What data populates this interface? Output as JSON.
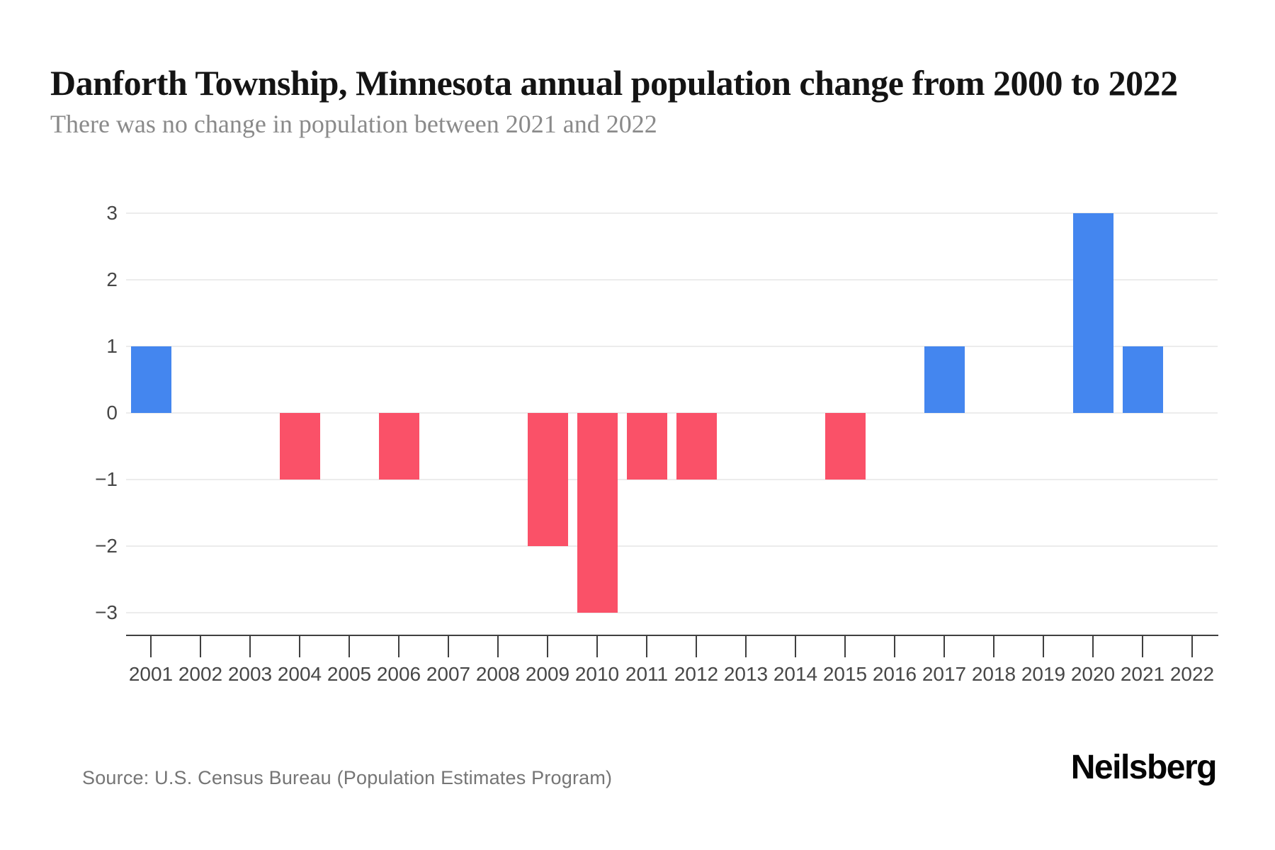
{
  "header": {
    "title": "Danforth Township, Minnesota annual population change from 2000 to 2022",
    "subtitle": "There was no change in population between 2021 and 2022"
  },
  "footer": {
    "source": "Source: U.S. Census Bureau (Population Estimates Program)",
    "brand": "Neilsberg"
  },
  "colors": {
    "positive_bar": "#4486EF",
    "negative_bar": "#FA5168",
    "gridline": "#ECECEC",
    "axis": "#3F3F3F",
    "axis_label": "#474747",
    "title_text": "#141414",
    "subtitle_text": "#8A8A8A",
    "source_text": "#757575"
  },
  "chart_data": {
    "type": "bar",
    "title": "Danforth Township, Minnesota annual population change from 2000 to 2022",
    "subtitle": "There was no change in population between 2021 and 2022",
    "xlabel": "",
    "ylabel": "",
    "categories": [
      "2001",
      "2002",
      "2003",
      "2004",
      "2005",
      "2006",
      "2007",
      "2008",
      "2009",
      "2010",
      "2011",
      "2012",
      "2013",
      "2014",
      "2015",
      "2016",
      "2017",
      "2018",
      "2019",
      "2020",
      "2021",
      "2022"
    ],
    "values": [
      1,
      0,
      0,
      -1,
      0,
      -1,
      0,
      0,
      -2,
      -3,
      -1,
      -1,
      0,
      0,
      -1,
      0,
      1,
      0,
      0,
      3,
      1,
      0
    ],
    "ylim": [
      -3,
      3
    ],
    "yticks": [
      3,
      2,
      1,
      0,
      -1,
      -2,
      -3
    ],
    "grid": true,
    "legend_position": "none",
    "positive_color": "#4486EF",
    "negative_color": "#FA5168"
  }
}
